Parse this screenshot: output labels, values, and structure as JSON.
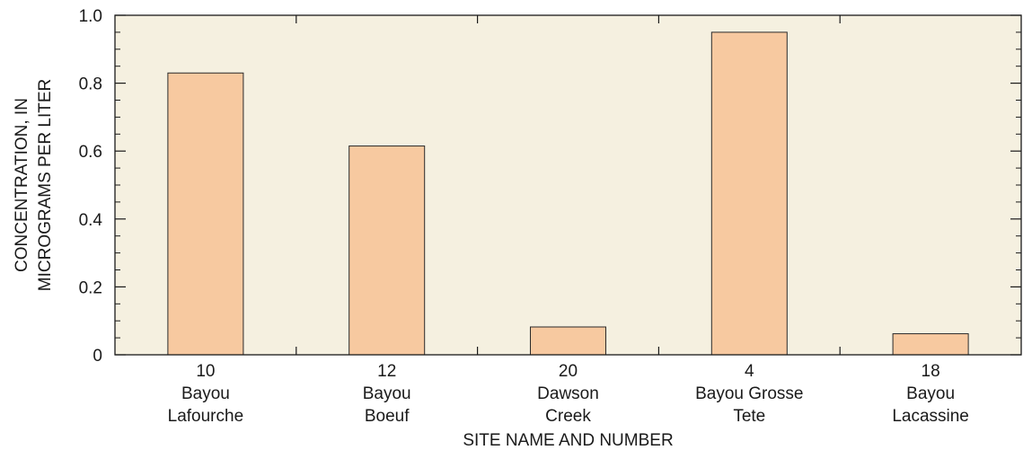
{
  "chart_data": {
    "type": "bar",
    "categories": [
      {
        "number": "10",
        "name_line1": "Bayou",
        "name_line2": "Lafourche"
      },
      {
        "number": "12",
        "name_line1": "Bayou",
        "name_line2": "Boeuf"
      },
      {
        "number": "20",
        "name_line1": "Dawson",
        "name_line2": "Creek"
      },
      {
        "number": "4",
        "name_line1": "Bayou Grosse",
        "name_line2": "Tete"
      },
      {
        "number": "18",
        "name_line1": "Bayou",
        "name_line2": "Lacassine"
      }
    ],
    "values": [
      0.83,
      0.615,
      0.082,
      0.95,
      0.062
    ],
    "xlabel": "SITE NAME AND NUMBER",
    "ylabel_line1": "CONCENTRATION, IN",
    "ylabel_line2": "MICROGRAMS PER LITER",
    "ylim": [
      0,
      1.0
    ],
    "yticks": [
      {
        "value": 0,
        "label": "0"
      },
      {
        "value": 0.2,
        "label": "0.2"
      },
      {
        "value": 0.4,
        "label": "0.4"
      },
      {
        "value": 0.6,
        "label": "0.6"
      },
      {
        "value": 0.8,
        "label": "0.8"
      },
      {
        "value": 1.0,
        "label": "1.0"
      }
    ],
    "grid": false,
    "legend": "none",
    "colors": {
      "plot_background": "#f5f0e0",
      "bar_fill": "#f7c9a0",
      "bar_stroke": "#2a2a2a",
      "axis": "#1a1a1a"
    }
  }
}
